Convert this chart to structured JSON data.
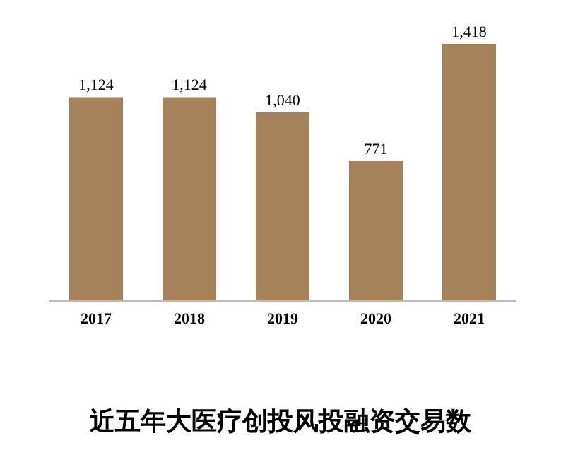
{
  "chart_data": {
    "type": "bar",
    "title": "近五年大医疗创投风投融资交易数",
    "categories": [
      "2017",
      "2018",
      "2019",
      "2020",
      "2021"
    ],
    "values": [
      1124,
      1124,
      1040,
      771,
      1418
    ],
    "value_labels": [
      "1,124",
      "1,124",
      "1,040",
      "771",
      "1,418"
    ],
    "color": "#a5825a",
    "grid": false,
    "legend": false
  }
}
